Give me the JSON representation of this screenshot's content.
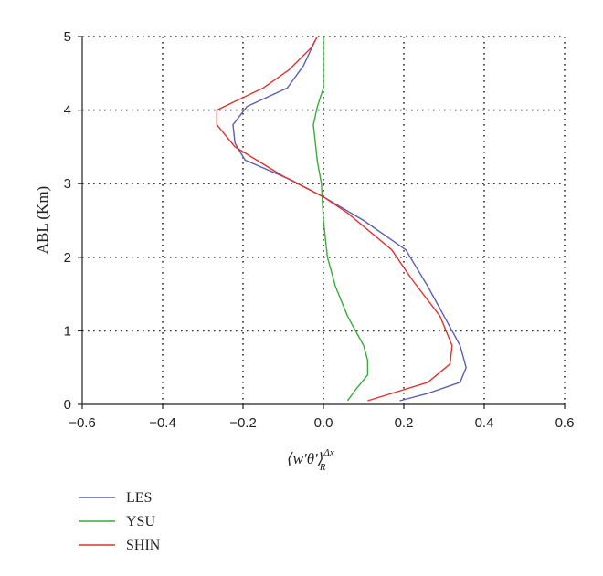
{
  "chart_data": {
    "type": "line",
    "title": "",
    "xlabel": "⟨w′θ′⟩",
    "xlabel_sup": "Δx",
    "xlabel_sub": "R",
    "ylabel": "ABL (Km)",
    "xlim": [
      -0.6,
      0.6
    ],
    "ylim": [
      0,
      5
    ],
    "xticks": [
      -0.6,
      -0.4,
      -0.2,
      0.0,
      0.2,
      0.4,
      0.6
    ],
    "xtick_labels": [
      "−0.6",
      "−0.4",
      "−0.2",
      "0.0",
      "0.2",
      "0.4",
      "0.6"
    ],
    "yticks": [
      0,
      1,
      2,
      3,
      4,
      5
    ],
    "ytick_labels": [
      "0",
      "1",
      "2",
      "3",
      "4",
      "5"
    ],
    "grid": true,
    "legend_position": "bottom-left-outside",
    "series": [
      {
        "name": "LES",
        "color": "#5a5fb3",
        "points": [
          [
            0.19,
            0.05
          ],
          [
            0.26,
            0.15
          ],
          [
            0.34,
            0.3
          ],
          [
            0.355,
            0.5
          ],
          [
            0.34,
            0.8
          ],
          [
            0.31,
            1.1
          ],
          [
            0.26,
            1.6
          ],
          [
            0.205,
            2.1
          ],
          [
            0.1,
            2.5
          ],
          [
            0.0,
            2.82
          ],
          [
            -0.08,
            3.05
          ],
          [
            -0.195,
            3.32
          ],
          [
            -0.22,
            3.55
          ],
          [
            -0.225,
            3.8
          ],
          [
            -0.19,
            4.05
          ],
          [
            -0.09,
            4.3
          ],
          [
            -0.05,
            4.6
          ],
          [
            -0.02,
            4.95
          ]
        ]
      },
      {
        "name": "YSU",
        "color": "#3aaa3a",
        "points": [
          [
            0.06,
            0.05
          ],
          [
            0.08,
            0.2
          ],
          [
            0.11,
            0.4
          ],
          [
            0.11,
            0.6
          ],
          [
            0.1,
            0.8
          ],
          [
            0.06,
            1.2
          ],
          [
            0.03,
            1.6
          ],
          [
            0.01,
            2.0
          ],
          [
            0.0,
            2.5
          ],
          [
            -0.005,
            3.0
          ],
          [
            -0.015,
            3.3
          ],
          [
            -0.025,
            3.8
          ],
          [
            -0.015,
            4.05
          ],
          [
            0.0,
            4.3
          ],
          [
            0.0,
            4.6
          ],
          [
            0.0,
            5.0
          ]
        ]
      },
      {
        "name": "SHIN",
        "color": "#e0332e",
        "points": [
          [
            0.11,
            0.05
          ],
          [
            0.26,
            0.3
          ],
          [
            0.315,
            0.55
          ],
          [
            0.32,
            0.8
          ],
          [
            0.29,
            1.2
          ],
          [
            0.22,
            1.7
          ],
          [
            0.17,
            2.1
          ],
          [
            0.06,
            2.6
          ],
          [
            0.0,
            2.82
          ],
          [
            -0.1,
            3.1
          ],
          [
            -0.22,
            3.5
          ],
          [
            -0.265,
            3.8
          ],
          [
            -0.265,
            4.0
          ],
          [
            -0.15,
            4.3
          ],
          [
            -0.085,
            4.55
          ],
          [
            -0.03,
            4.85
          ],
          [
            -0.015,
            5.0
          ]
        ]
      }
    ]
  }
}
